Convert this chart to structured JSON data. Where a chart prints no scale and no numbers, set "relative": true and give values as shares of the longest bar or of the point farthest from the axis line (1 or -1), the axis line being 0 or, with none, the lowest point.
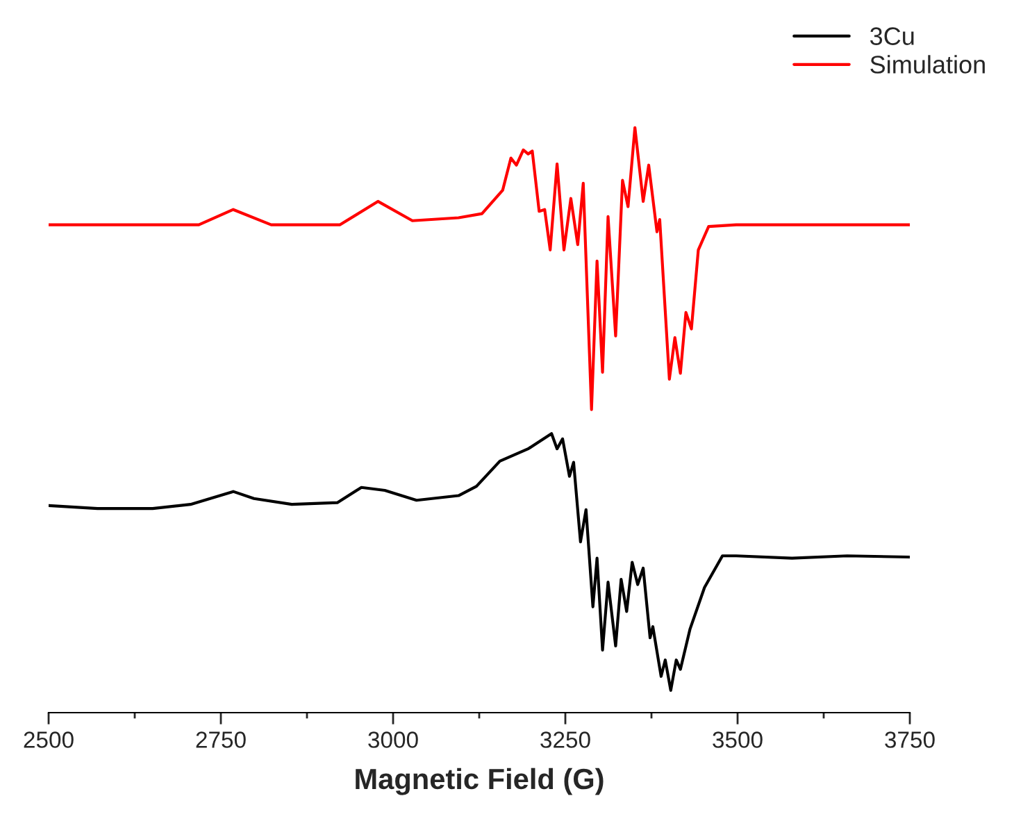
{
  "chart_data": {
    "type": "line",
    "relative": true,
    "xlabel": "Magnetic Field (G)",
    "xlim": [
      2500,
      3750
    ],
    "xticks": [
      2500,
      {
        "value": 2625,
        "label": null
      },
      2750,
      {
        "value": 2875,
        "label": null
      },
      3000,
      {
        "value": 3125,
        "label": null
      },
      3250,
      {
        "value": 3375,
        "label": null
      },
      3500,
      {
        "value": 3625,
        "label": null
      },
      3750
    ],
    "tick_labels": "x",
    "grid": false,
    "legend": "top right",
    "marker": "none",
    "line_style": "solid",
    "series": [
      {
        "name": "3Cu",
        "color": "#000000",
        "x": [
          2500,
          2571,
          2651,
          2706,
          2768,
          2798,
          2853,
          2919,
          2954,
          2988,
          3034,
          3095,
          3121,
          3155,
          3196,
          3230,
          3238,
          3246,
          3256,
          3262,
          3272,
          3280,
          3290,
          3296,
          3304,
          3312,
          3323,
          3331,
          3339,
          3347,
          3355,
          3363,
          3373,
          3377,
          3389,
          3395,
          3403,
          3411,
          3417,
          3431,
          3452,
          3478,
          3498,
          3579,
          3659,
          3750
        ],
        "values": [
          0.354,
          0.349,
          0.349,
          0.356,
          0.378,
          0.366,
          0.356,
          0.359,
          0.385,
          0.38,
          0.363,
          0.371,
          0.387,
          0.43,
          0.451,
          0.477,
          0.451,
          0.468,
          0.404,
          0.428,
          0.292,
          0.347,
          0.181,
          0.264,
          0.107,
          0.223,
          0.114,
          0.228,
          0.173,
          0.257,
          0.219,
          0.247,
          0.128,
          0.147,
          0.062,
          0.09,
          0.038,
          0.09,
          0.074,
          0.143,
          0.214,
          0.268,
          0.268,
          0.264,
          0.268,
          0.266
        ]
      },
      {
        "name": "Simulation",
        "color": "#ff0000",
        "x": [
          2500,
          2718,
          2768,
          2823,
          2923,
          2978,
          3028,
          3095,
          3129,
          3159,
          3171,
          3179,
          3189,
          3196,
          3202,
          3212,
          3220,
          3228,
          3238,
          3248,
          3258,
          3268,
          3276,
          3288,
          3296,
          3304,
          3312,
          3323,
          3333,
          3341,
          3351,
          3363,
          3371,
          3383,
          3387,
          3401,
          3409,
          3417,
          3425,
          3433,
          3443,
          3458,
          3498,
          3750
        ],
        "values": [
          0.834,
          0.834,
          0.86,
          0.834,
          0.834,
          0.874,
          0.841,
          0.846,
          0.853,
          0.893,
          0.948,
          0.936,
          0.962,
          0.955,
          0.96,
          0.857,
          0.86,
          0.791,
          0.938,
          0.791,
          0.879,
          0.8,
          0.905,
          0.518,
          0.772,
          0.582,
          0.848,
          0.644,
          0.91,
          0.865,
          1,
          0.874,
          0.936,
          0.822,
          0.843,
          0.57,
          0.641,
          0.58,
          0.684,
          0.656,
          0.791,
          0.831,
          0.834,
          0.834
        ]
      }
    ]
  }
}
